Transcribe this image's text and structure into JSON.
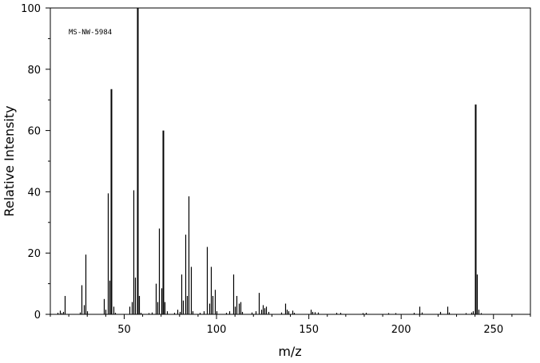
{
  "chart_data": {
    "type": "bar",
    "title": "",
    "annotation": "MS-NW-5984",
    "xlabel": "m/z",
    "ylabel": "Relative Intensity",
    "xlim": [
      10,
      270
    ],
    "ylim": [
      0,
      100
    ],
    "x_ticks": [
      50,
      100,
      150,
      200,
      250
    ],
    "y_ticks": [
      0,
      20,
      40,
      60,
      80,
      100
    ],
    "grid": false,
    "legend": "none",
    "color": "#000000",
    "peaks": [
      {
        "mz": 14,
        "intensity": 0.5
      },
      {
        "mz": 15,
        "intensity": 1.2
      },
      {
        "mz": 16,
        "intensity": 0.4
      },
      {
        "mz": 17,
        "intensity": 0.8
      },
      {
        "mz": 18,
        "intensity": 6.0
      },
      {
        "mz": 26,
        "intensity": 0.6
      },
      {
        "mz": 27,
        "intensity": 9.5
      },
      {
        "mz": 28,
        "intensity": 3.0
      },
      {
        "mz": 29,
        "intensity": 19.5
      },
      {
        "mz": 30,
        "intensity": 1.0
      },
      {
        "mz": 39,
        "intensity": 5.0
      },
      {
        "mz": 40,
        "intensity": 1.5
      },
      {
        "mz": 41,
        "intensity": 39.5
      },
      {
        "mz": 42,
        "intensity": 11.0
      },
      {
        "mz": 43,
        "intensity": 73.5
      },
      {
        "mz": 44,
        "intensity": 2.5
      },
      {
        "mz": 45,
        "intensity": 0.5
      },
      {
        "mz": 53,
        "intensity": 2.5
      },
      {
        "mz": 54,
        "intensity": 4.0
      },
      {
        "mz": 55,
        "intensity": 40.5
      },
      {
        "mz": 56,
        "intensity": 12.0
      },
      {
        "mz": 57,
        "intensity": 100.0
      },
      {
        "mz": 58,
        "intensity": 6.0
      },
      {
        "mz": 59,
        "intensity": 0.5
      },
      {
        "mz": 63,
        "intensity": 0.4
      },
      {
        "mz": 65,
        "intensity": 0.6
      },
      {
        "mz": 67,
        "intensity": 10.0
      },
      {
        "mz": 68,
        "intensity": 4.0
      },
      {
        "mz": 69,
        "intensity": 28.0
      },
      {
        "mz": 70,
        "intensity": 8.5
      },
      {
        "mz": 71,
        "intensity": 60.0
      },
      {
        "mz": 72,
        "intensity": 4.0
      },
      {
        "mz": 73,
        "intensity": 1.0
      },
      {
        "mz": 77,
        "intensity": 0.5
      },
      {
        "mz": 79,
        "intensity": 1.5
      },
      {
        "mz": 80,
        "intensity": 0.8
      },
      {
        "mz": 81,
        "intensity": 13.0
      },
      {
        "mz": 82,
        "intensity": 4.5
      },
      {
        "mz": 83,
        "intensity": 26.0
      },
      {
        "mz": 84,
        "intensity": 6.0
      },
      {
        "mz": 85,
        "intensity": 38.5
      },
      {
        "mz": 86,
        "intensity": 15.5
      },
      {
        "mz": 87,
        "intensity": 1.0
      },
      {
        "mz": 91,
        "intensity": 0.5
      },
      {
        "mz": 93,
        "intensity": 1.0
      },
      {
        "mz": 95,
        "intensity": 22.0
      },
      {
        "mz": 96,
        "intensity": 3.5
      },
      {
        "mz": 97,
        "intensity": 15.5
      },
      {
        "mz": 98,
        "intensity": 6.0
      },
      {
        "mz": 99,
        "intensity": 8.0
      },
      {
        "mz": 100,
        "intensity": 1.0
      },
      {
        "mz": 105,
        "intensity": 0.5
      },
      {
        "mz": 107,
        "intensity": 1.0
      },
      {
        "mz": 109,
        "intensity": 13.0
      },
      {
        "mz": 110,
        "intensity": 2.5
      },
      {
        "mz": 111,
        "intensity": 6.0
      },
      {
        "mz": 112,
        "intensity": 3.5
      },
      {
        "mz": 113,
        "intensity": 4.0
      },
      {
        "mz": 114,
        "intensity": 0.8
      },
      {
        "mz": 119,
        "intensity": 0.6
      },
      {
        "mz": 121,
        "intensity": 1.0
      },
      {
        "mz": 123,
        "intensity": 7.0
      },
      {
        "mz": 124,
        "intensity": 1.5
      },
      {
        "mz": 125,
        "intensity": 3.0
      },
      {
        "mz": 126,
        "intensity": 2.0
      },
      {
        "mz": 127,
        "intensity": 2.5
      },
      {
        "mz": 128,
        "intensity": 0.8
      },
      {
        "mz": 135,
        "intensity": 0.6
      },
      {
        "mz": 137,
        "intensity": 3.5
      },
      {
        "mz": 138,
        "intensity": 1.5
      },
      {
        "mz": 139,
        "intensity": 1.0
      },
      {
        "mz": 141,
        "intensity": 1.2
      },
      {
        "mz": 142,
        "intensity": 0.5
      },
      {
        "mz": 151,
        "intensity": 1.5
      },
      {
        "mz": 152,
        "intensity": 0.8
      },
      {
        "mz": 153,
        "intensity": 0.7
      },
      {
        "mz": 155,
        "intensity": 0.6
      },
      {
        "mz": 165,
        "intensity": 0.5
      },
      {
        "mz": 167,
        "intensity": 0.5
      },
      {
        "mz": 179,
        "intensity": 0.4
      },
      {
        "mz": 181,
        "intensity": 0.5
      },
      {
        "mz": 193,
        "intensity": 0.4
      },
      {
        "mz": 197,
        "intensity": 0.4
      },
      {
        "mz": 207,
        "intensity": 0.5
      },
      {
        "mz": 210,
        "intensity": 2.5
      },
      {
        "mz": 211,
        "intensity": 0.6
      },
      {
        "mz": 221,
        "intensity": 0.8
      },
      {
        "mz": 225,
        "intensity": 2.5
      },
      {
        "mz": 226,
        "intensity": 0.6
      },
      {
        "mz": 235,
        "intensity": 0.4
      },
      {
        "mz": 238,
        "intensity": 0.6
      },
      {
        "mz": 239,
        "intensity": 1.0
      },
      {
        "mz": 240,
        "intensity": 68.5
      },
      {
        "mz": 241,
        "intensity": 13.0
      },
      {
        "mz": 242,
        "intensity": 1.5
      },
      {
        "mz": 243,
        "intensity": 0.4
      }
    ]
  }
}
